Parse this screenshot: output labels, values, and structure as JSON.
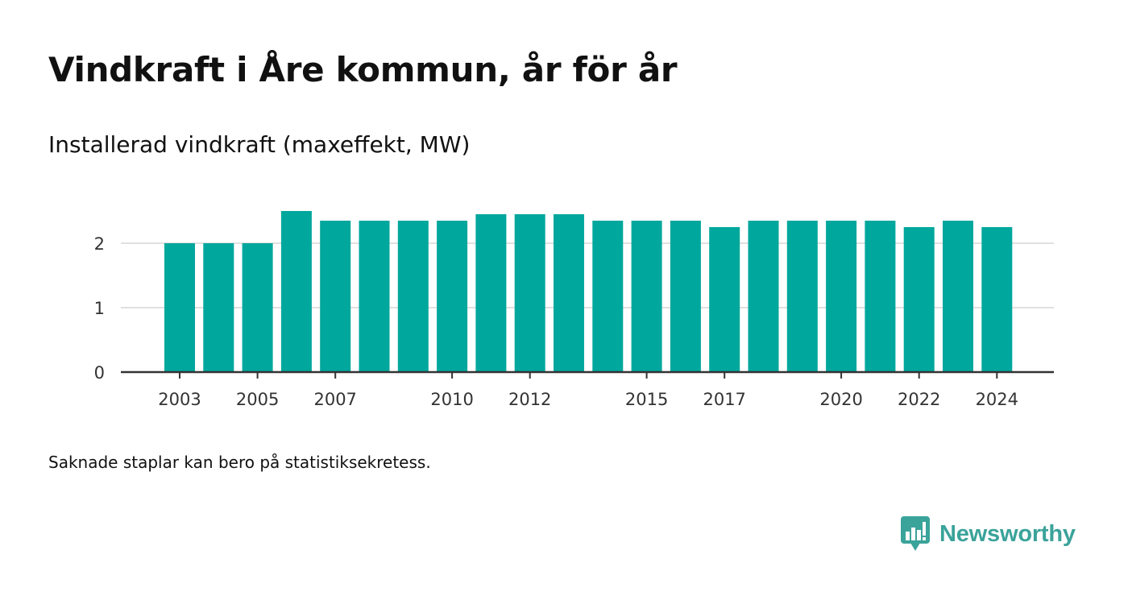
{
  "header": {
    "title": "Vindkraft i Åre kommun, år för år",
    "subtitle": "Installerad vindkraft (maxeffekt, MW)"
  },
  "footer": {
    "note": "Saknade staplar kan bero på statistiksekretess.",
    "brand": "Newsworthy",
    "brand_icon": "bar-chart-speech-bubble-icon"
  },
  "colors": {
    "bar": "#00a79d",
    "grid": "#e0e0e0",
    "axis": "#333333",
    "brand": "#3aa39a"
  },
  "chart_data": {
    "type": "bar",
    "categories": [
      2003,
      2004,
      2005,
      2006,
      2007,
      2008,
      2009,
      2010,
      2011,
      2012,
      2013,
      2014,
      2015,
      2016,
      2017,
      2018,
      2019,
      2020,
      2021,
      2022,
      2023,
      2024
    ],
    "values": [
      2.0,
      2.0,
      2.0,
      2.5,
      2.35,
      2.35,
      2.35,
      2.35,
      2.45,
      2.45,
      2.45,
      2.35,
      2.35,
      2.35,
      2.25,
      2.35,
      2.35,
      2.35,
      2.35,
      2.25,
      2.35,
      2.25
    ],
    "x_tick_labels": [
      "2003",
      "2005",
      "2007",
      "2010",
      "2012",
      "2015",
      "2017",
      "2020",
      "2022",
      "2024"
    ],
    "y_ticks": [
      0,
      1,
      2
    ],
    "ylim": [
      0,
      2.6
    ],
    "grid": true,
    "legend": "none",
    "title": "Vindkraft i Åre kommun, år för år",
    "ylabel": "Installerad vindkraft (maxeffekt, MW)",
    "xlabel": ""
  }
}
